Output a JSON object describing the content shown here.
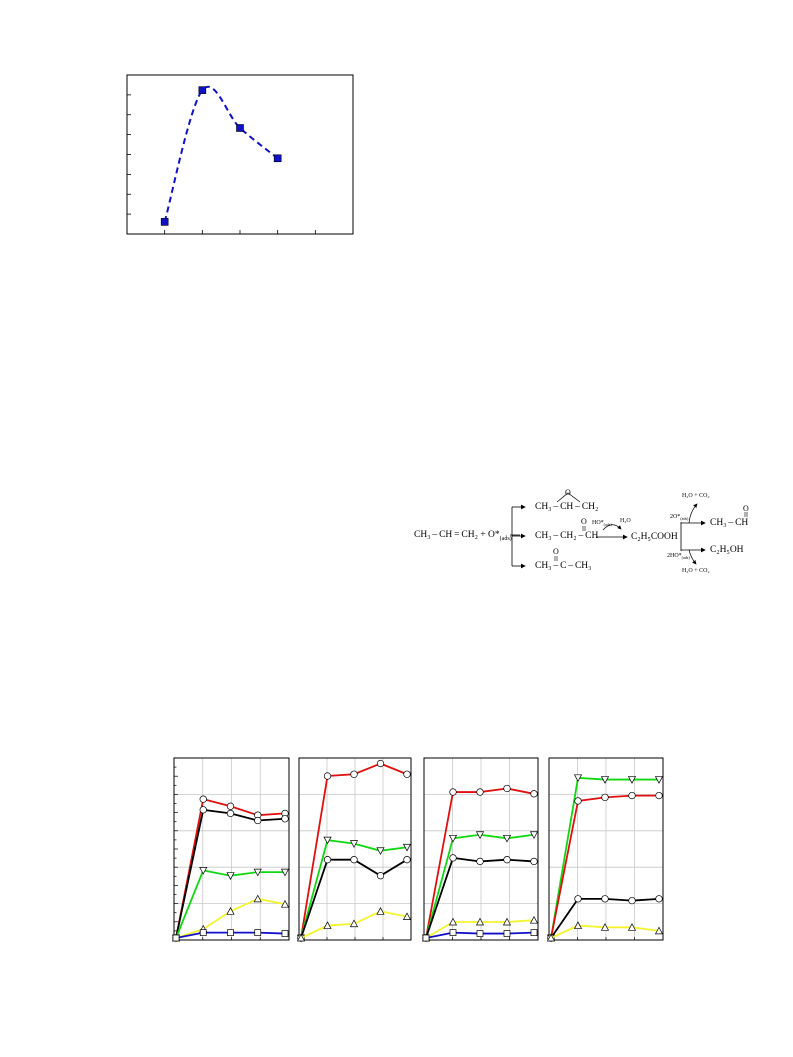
{
  "chart_data": [
    {
      "type": "line",
      "x": [
        1,
        2,
        3,
        4
      ],
      "values": [
        0.08,
        0.95,
        0.7,
        0.5
      ],
      "xlim": [
        0,
        6
      ],
      "ylim": [
        0,
        1.05
      ],
      "xlabel": "",
      "ylabel": "",
      "grid": false,
      "series_color": "#1010c8",
      "line_style": "dashed",
      "marker": "square"
    },
    {
      "type": "line",
      "grid": true,
      "panels": [
        {
          "x": [
            0,
            1,
            2,
            3,
            4
          ],
          "ylim": [
            0,
            100
          ],
          "series": [
            {
              "color": "#e01010",
              "marker": "circle",
              "values": [
                0,
                78,
                74,
                69,
                70
              ]
            },
            {
              "color": "#000000",
              "marker": "circle",
              "values": [
                0,
                72,
                70,
                66,
                67
              ]
            },
            {
              "color": "#10d810",
              "marker": "triangle-down",
              "values": [
                0,
                38,
                35,
                37,
                37
              ]
            },
            {
              "color": "#f4f430",
              "marker": "triangle-up",
              "values": [
                0,
                5,
                15,
                22,
                19
              ]
            },
            {
              "color": "#1010c8",
              "marker": "square",
              "values": [
                0,
                3,
                3,
                3,
                2.5
              ]
            }
          ]
        },
        {
          "x": [
            0,
            1,
            2,
            3,
            4
          ],
          "ylim": [
            0,
            100
          ],
          "series": [
            {
              "color": "#e01010",
              "marker": "circle",
              "values": [
                0,
                91,
                92,
                98,
                92
              ]
            },
            {
              "color": "#10d810",
              "marker": "triangle-down",
              "values": [
                0,
                55,
                53,
                49,
                51
              ]
            },
            {
              "color": "#000000",
              "marker": "circle",
              "values": [
                0,
                44,
                44,
                35,
                44
              ]
            },
            {
              "color": "#f4f430",
              "marker": "triangle-up",
              "values": [
                0,
                7,
                8,
                15,
                12
              ]
            }
          ]
        },
        {
          "x": [
            0,
            1,
            2,
            3,
            4
          ],
          "ylim": [
            0,
            100
          ],
          "series": [
            {
              "color": "#e01010",
              "marker": "circle",
              "values": [
                0,
                82,
                82,
                84,
                81
              ]
            },
            {
              "color": "#10d810",
              "marker": "triangle-down",
              "values": [
                0,
                56,
                58,
                56,
                58
              ]
            },
            {
              "color": "#000000",
              "marker": "circle",
              "values": [
                0,
                45,
                43,
                44,
                43
              ]
            },
            {
              "color": "#f4f430",
              "marker": "triangle-up",
              "values": [
                0,
                9,
                9,
                9,
                10
              ]
            },
            {
              "color": "#1010c8",
              "marker": "square",
              "values": [
                0,
                3,
                2.5,
                2.5,
                3
              ]
            }
          ]
        },
        {
          "x": [
            0,
            1,
            2,
            3,
            4
          ],
          "ylim": [
            0,
            100
          ],
          "series": [
            {
              "color": "#10d810",
              "marker": "triangle-down",
              "values": [
                0,
                90,
                89,
                89,
                89
              ]
            },
            {
              "color": "#e01010",
              "marker": "circle",
              "values": [
                0,
                77,
                79,
                80,
                80
              ]
            },
            {
              "color": "#000000",
              "marker": "circle",
              "values": [
                0,
                22,
                22,
                21,
                22
              ]
            },
            {
              "color": "#f4f430",
              "marker": "triangle-up",
              "values": [
                0,
                7,
                6,
                6,
                4
              ]
            }
          ]
        }
      ]
    }
  ],
  "scheme": {
    "reactant": "CH₃ – CH = CH₂ + O*",
    "reactant_sub": "(ads)",
    "epoxide": "CH₃ – CH – CH₂",
    "epoxide_o": "O",
    "propanal": "CH₃ – CH₂ – CH",
    "propanal_o": "O",
    "acetone": "CH₃ – C – CH₃",
    "acetone_o": "O",
    "ho_ads": "HO*",
    "ho_ads_sub": "(ads)",
    "h2o": "H₂O",
    "acid": "C₂H₅COOH",
    "top_products": "H₂O + CO₂",
    "two_o_ads": "2O*",
    "two_o_ads_sub": "(ads)",
    "acetaldehyde": "CH₃ – CH",
    "acetaldehyde_o": "O",
    "ethanol": "C₂H₅OH",
    "two_ho_ads": "2HO*",
    "two_ho_ads_sub": "(ads)",
    "bottom_products": "H₂O + CO₂"
  }
}
